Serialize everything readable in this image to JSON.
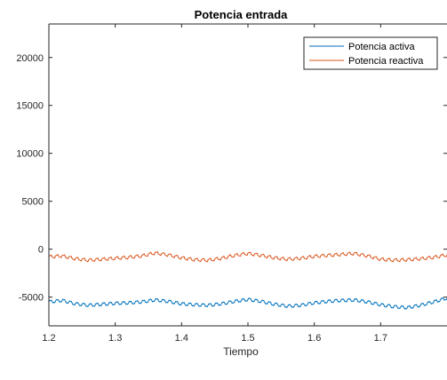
{
  "chart_data": {
    "type": "line",
    "title": "Potencia entrada",
    "xlabel": "Tiempo",
    "ylabel": "",
    "xlim": [
      1.2,
      1.8
    ],
    "ylim": [
      -8000,
      23500
    ],
    "xticks": [
      1.2,
      1.3,
      1.4,
      1.5,
      1.6,
      1.7
    ],
    "xtick_labels": [
      "1.2",
      "1.3",
      "1.4",
      "1.5",
      "1.6",
      "1.7"
    ],
    "yticks": [
      -5000,
      0,
      5000,
      10000,
      15000,
      20000
    ],
    "ytick_labels": [
      "-5000",
      "0",
      "5000",
      "10000",
      "15000",
      "20000"
    ],
    "grid": false,
    "legend": "top-right",
    "series": [
      {
        "name": "Potencia activa",
        "color": "#0072BD",
        "x": [
          1.2,
          1.22,
          1.24,
          1.26,
          1.28,
          1.3,
          1.32,
          1.34,
          1.36,
          1.38,
          1.4,
          1.42,
          1.44,
          1.46,
          1.48,
          1.5,
          1.52,
          1.54,
          1.56,
          1.58,
          1.6,
          1.62,
          1.64,
          1.66,
          1.68,
          1.7,
          1.72,
          1.74,
          1.76,
          1.78,
          1.8
        ],
        "values": [
          -5500,
          -5350,
          -5700,
          -5850,
          -5750,
          -5650,
          -5600,
          -5500,
          -5300,
          -5450,
          -5700,
          -5800,
          -5850,
          -5700,
          -5450,
          -5250,
          -5450,
          -5750,
          -5950,
          -5850,
          -5600,
          -5450,
          -5350,
          -5300,
          -5500,
          -5800,
          -6000,
          -6100,
          -5850,
          -5500,
          -5100
        ]
      },
      {
        "name": "Potencia reactiva",
        "color": "#D95319",
        "x": [
          1.2,
          1.22,
          1.24,
          1.26,
          1.28,
          1.3,
          1.32,
          1.34,
          1.36,
          1.38,
          1.4,
          1.42,
          1.44,
          1.46,
          1.48,
          1.5,
          1.52,
          1.54,
          1.56,
          1.58,
          1.6,
          1.62,
          1.64,
          1.66,
          1.68,
          1.7,
          1.72,
          1.74,
          1.76,
          1.78,
          1.8
        ],
        "values": [
          -800,
          -700,
          -1000,
          -1150,
          -1050,
          -950,
          -850,
          -700,
          -400,
          -600,
          -900,
          -1100,
          -1150,
          -950,
          -650,
          -450,
          -650,
          -900,
          -1050,
          -950,
          -750,
          -650,
          -550,
          -450,
          -700,
          -1050,
          -1150,
          -1100,
          -1000,
          -850,
          -600
        ]
      }
    ]
  }
}
